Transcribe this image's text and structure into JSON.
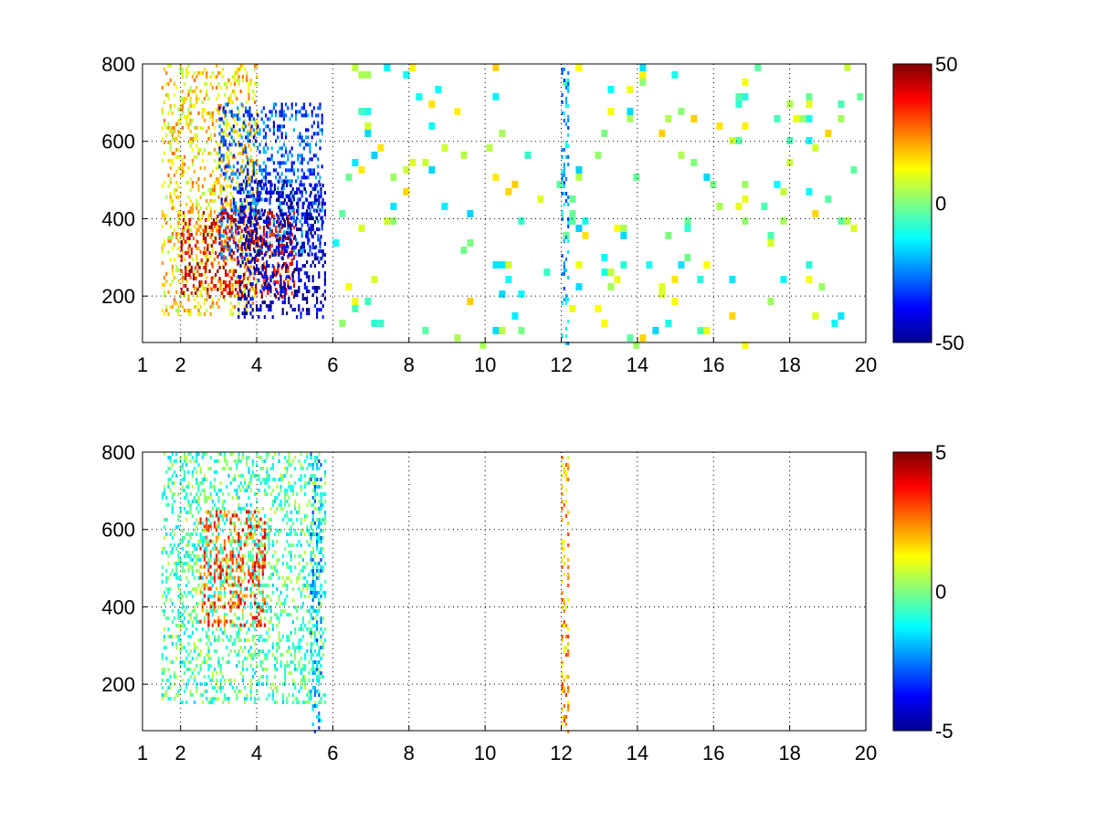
{
  "chart_data": [
    {
      "type": "heatmap",
      "title": "",
      "xlabel": "",
      "ylabel": "",
      "xlim": [
        1,
        20
      ],
      "ylim": [
        80,
        800
      ],
      "xticks": [
        1,
        2,
        4,
        6,
        8,
        10,
        12,
        14,
        16,
        18,
        20
      ],
      "yticks": [
        200,
        400,
        600,
        800
      ],
      "grid": true,
      "colormap": "jet",
      "clim": [
        -50,
        50
      ],
      "colorbar_ticks": [
        -50,
        0,
        50
      ],
      "features": [
        {
          "x": [
            1.5,
            4.0
          ],
          "y": [
            150,
            800
          ],
          "value": 15
        },
        {
          "x": [
            3.0,
            5.7
          ],
          "y": [
            300,
            700
          ],
          "value": -30
        },
        {
          "x": [
            2.0,
            5.0
          ],
          "y": [
            200,
            420
          ],
          "value": 40
        },
        {
          "x": [
            3.5,
            5.8
          ],
          "y": [
            150,
            500
          ],
          "value": -45
        },
        {
          "x": [
            6.0,
            20.0
          ],
          "y": [
            80,
            800
          ],
          "value": 0
        },
        {
          "x": [
            12.0,
            12.2
          ],
          "y": [
            80,
            800
          ],
          "value": -20
        }
      ]
    },
    {
      "type": "heatmap",
      "title": "",
      "xlabel": "",
      "ylabel": "",
      "xlim": [
        1,
        20
      ],
      "ylim": [
        80,
        800
      ],
      "xticks": [
        1,
        2,
        4,
        6,
        8,
        10,
        12,
        14,
        16,
        18,
        20
      ],
      "yticks": [
        200,
        400,
        600,
        800
      ],
      "grid": true,
      "colormap": "jet",
      "clim": [
        -5,
        5
      ],
      "colorbar_ticks": [
        -5,
        0,
        5
      ],
      "features": [
        {
          "x": [
            1.5,
            5.8
          ],
          "y": [
            150,
            800
          ],
          "value": -0.5
        },
        {
          "x": [
            2.5,
            4.2
          ],
          "y": [
            350,
            650
          ],
          "value": 3
        },
        {
          "x": [
            5.4,
            5.7
          ],
          "y": [
            80,
            800
          ],
          "value": -2
        },
        {
          "x": [
            12.0,
            12.2
          ],
          "y": [
            80,
            800
          ],
          "value": 2
        }
      ]
    }
  ]
}
